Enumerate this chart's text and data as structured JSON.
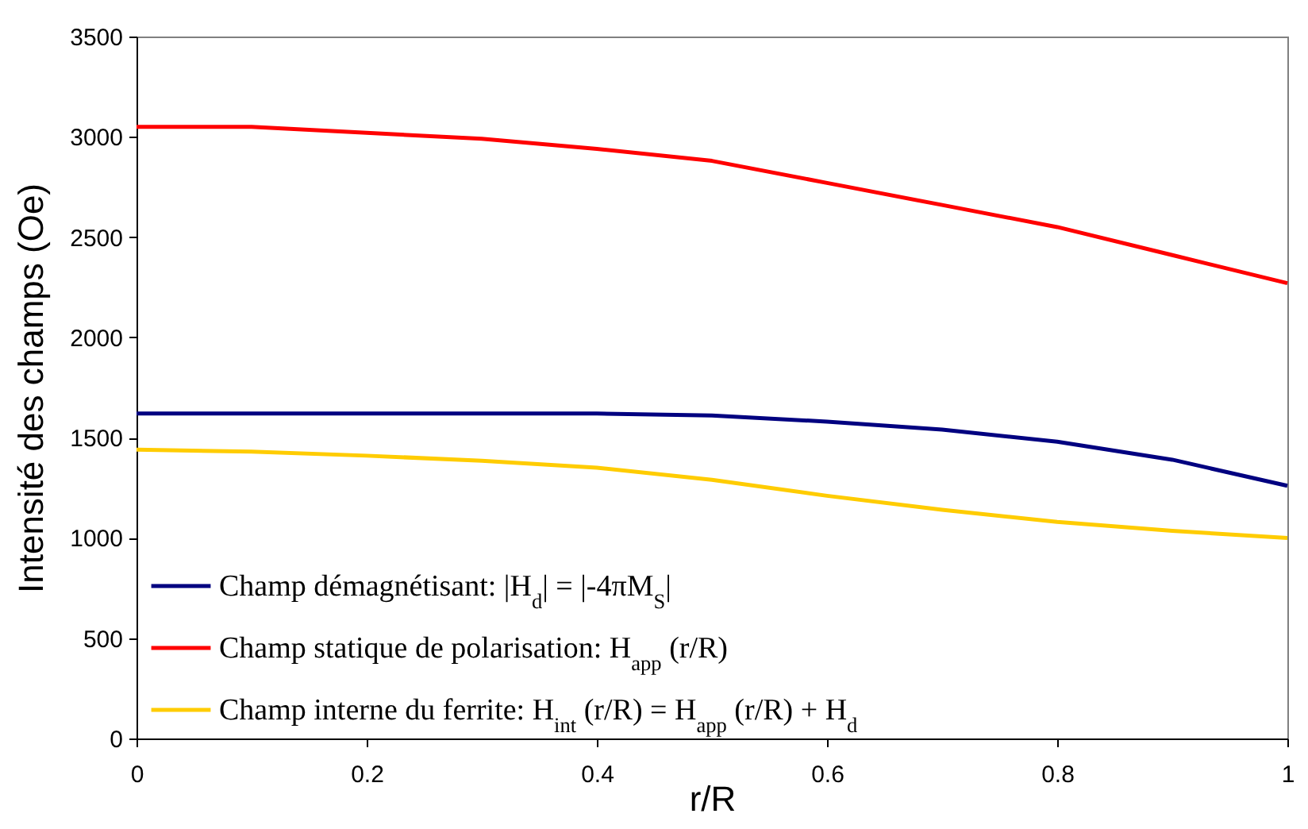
{
  "chart_data": {
    "type": "line",
    "xlabel": "r/R",
    "ylabel": "Intensité des champs (Oe)",
    "x": [
      0,
      0.1,
      0.2,
      0.3,
      0.4,
      0.5,
      0.6,
      0.7,
      0.8,
      0.9,
      1
    ],
    "series": [
      {
        "name": "Champ démagnétisant: |H$_{d}$| = |-4πM$_{S}$|",
        "color": "#000080",
        "values": [
          1620,
          1620,
          1620,
          1620,
          1620,
          1610,
          1580,
          1540,
          1480,
          1390,
          1260
        ]
      },
      {
        "name": "Champ statique de polarisation: H$_{app}$ (r/R)",
        "color": "#ff0000",
        "values": [
          3050,
          3050,
          3020,
          2990,
          2940,
          2880,
          2770,
          2660,
          2550,
          2410,
          2270
        ]
      },
      {
        "name": "Champ interne du ferrite: H$_{int}$ (r/R) = H$_{app}$ (r/R) + H$_{d}$",
        "color": "#ffcc00",
        "values": [
          1440,
          1430,
          1410,
          1385,
          1350,
          1290,
          1210,
          1140,
          1080,
          1035,
          1000
        ]
      }
    ],
    "xlim": [
      0,
      1
    ],
    "xticks": [
      0,
      0.2,
      0.4,
      0.6,
      0.8,
      1
    ],
    "ylim": [
      0,
      3500
    ],
    "yticks": [
      0,
      500,
      1000,
      1500,
      2000,
      2500,
      3000,
      3500
    ],
    "grid": false,
    "legend": "bottom left",
    "marker": "none",
    "line_style": "solid"
  }
}
